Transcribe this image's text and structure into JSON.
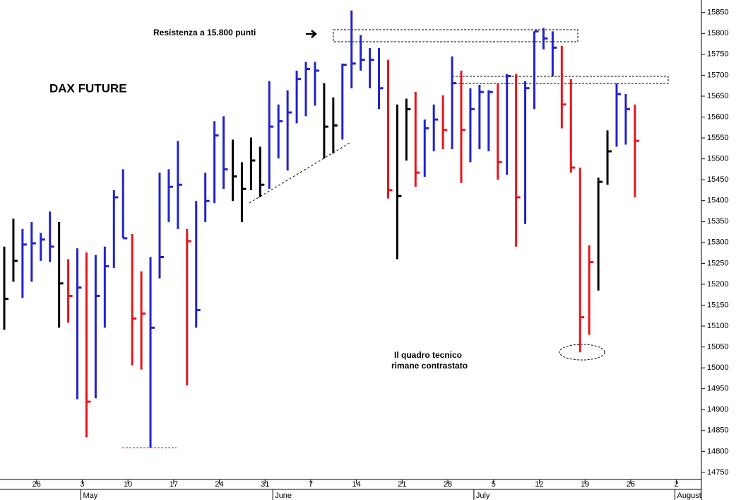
{
  "chart_data": {
    "type": "ohlc",
    "title": "DAX FUTURE",
    "annotations": [
      "Resistenza a 15.800 punti"
    ],
    "note": [
      "Il quadro tecnico",
      "rimane contrastato"
    ],
    "categories": [
      null,
      null,
      null,
      null,
      "26",
      null,
      null,
      null,
      null,
      "3",
      null,
      null,
      null,
      null,
      "10",
      null,
      null,
      null,
      null,
      "17",
      null,
      null,
      null,
      null,
      "24",
      null,
      null,
      null,
      null,
      "31",
      null,
      null,
      null,
      null,
      "7",
      null,
      null,
      null,
      null,
      "14",
      null,
      null,
      null,
      null,
      "21",
      null,
      null,
      null,
      null,
      "28",
      null,
      null,
      null,
      null,
      "5",
      null,
      null,
      null,
      null,
      "12",
      null,
      null,
      null,
      null,
      "19",
      null,
      null,
      null,
      null,
      "26",
      null,
      null,
      null,
      null,
      "2"
    ],
    "months": [
      {
        "index": 9,
        "label": "May"
      },
      {
        "index": 30,
        "label": "June"
      },
      {
        "index": 52,
        "label": "July"
      },
      {
        "index": 74,
        "label": "August"
      }
    ],
    "high": [
      15290,
      15357,
      15332,
      15349,
      15323,
      15374,
      15349,
      15260,
      15286,
      15276,
      15270,
      15290,
      15425,
      15475,
      15320,
      15231,
      15265,
      15467,
      15475,
      15543,
      15332,
      15399,
      15467,
      15590,
      15602,
      15546,
      15492,
      15551,
      15529,
      15686,
      15630,
      15664,
      15711,
      15732,
      15732,
      15681,
      15647,
      15728,
      15855,
      15796,
      15765,
      15765,
      15737,
      15630,
      15644,
      15660,
      15594,
      15630,
      15652,
      15745,
      15711,
      15669,
      15677,
      15664,
      15681,
      15703,
      15703,
      15686,
      15805,
      15813,
      15805,
      15770,
      15691,
      15479,
      15293,
      15455,
      15568,
      15681,
      15655,
      15630,
      null,
      null,
      null,
      null,
      null
    ],
    "low": [
      15091,
      15206,
      15167,
      15206,
      15256,
      15253,
      15096,
      15108,
      14925,
      14834,
      14927,
      15096,
      15239,
      15310,
      15006,
      14996,
      14809,
      15214,
      15349,
      15332,
      14958,
      15096,
      15349,
      15394,
      15428,
      15399,
      15349,
      15425,
      15408,
      15428,
      15501,
      15472,
      15585,
      15602,
      15627,
      15501,
      15513,
      15546,
      15669,
      15711,
      15669,
      15619,
      15405,
      15260,
      15496,
      15433,
      15457,
      15518,
      15523,
      15523,
      15442,
      15492,
      15523,
      15518,
      15450,
      15462,
      15290,
      15344,
      15619,
      15762,
      15698,
      15573,
      15467,
      15037,
      15079,
      15185,
      15438,
      15529,
      15534,
      15408,
      null,
      null,
      null,
      null,
      null
    ],
    "close": [
      15165,
      15256,
      15295,
      15298,
      15307,
      15290,
      15202,
      15172,
      15192,
      14919,
      15172,
      15243,
      15408,
      15310,
      15118,
      15130,
      15096,
      15265,
      15433,
      15438,
      15303,
      15138,
      15399,
      15556,
      15475,
      15458,
      15428,
      15496,
      15438,
      15577,
      15590,
      15611,
      15691,
      15715,
      15711,
      15577,
      15580,
      15725,
      15728,
      15737,
      15737,
      15669,
      15425,
      15411,
      15619,
      15467,
      15573,
      15594,
      15569,
      15681,
      15569,
      15619,
      15660,
      15660,
      15492,
      15698,
      15408,
      15669,
      15805,
      15788,
      15766,
      15630,
      15479,
      15121,
      15253,
      15445,
      15518,
      15655,
      15619,
      15543,
      null,
      null,
      null,
      null,
      null
    ],
    "colors": [
      "#000000",
      "#000000",
      "#2222cc",
      "#2222cc",
      "#2222cc",
      "#2222cc",
      "#000000",
      "#e8141c",
      "#2222cc",
      "#e8141c",
      "#2222cc",
      "#2222cc",
      "#2222cc",
      "#2222cc",
      "#e8141c",
      "#e8141c",
      "#2222cc",
      "#2222cc",
      "#2222cc",
      "#2222cc",
      "#e8141c",
      "#2222cc",
      "#2222cc",
      "#2222cc",
      "#2222cc",
      "#000000",
      "#000000",
      "#000000",
      "#000000",
      "#2222cc",
      "#2222cc",
      "#2222cc",
      "#2222cc",
      "#2222cc",
      "#2222cc",
      "#000000",
      "#000000",
      "#2222cc",
      "#2222cc",
      "#2222cc",
      "#2222cc",
      "#2222cc",
      "#e8141c",
      "#000000",
      "#000000",
      "#e8141c",
      "#2222cc",
      "#2222cc",
      "#e8141c",
      "#2222cc",
      "#e8141c",
      "#2222cc",
      "#2222cc",
      "#2222cc",
      "#e8141c",
      "#2222cc",
      "#e8141c",
      "#2222cc",
      "#2222cc",
      "#2222cc",
      "#2222cc",
      "#e8141c",
      "#e8141c",
      "#e8141c",
      "#e8141c",
      "#000000",
      "#000000",
      "#2222cc",
      "#2222cc",
      "#e8141c",
      null,
      null,
      null,
      null,
      null
    ],
    "ylim": [
      14716,
      15880
    ],
    "yticks": [
      14750,
      14800,
      14850,
      14900,
      14950,
      15000,
      15050,
      15100,
      15150,
      15200,
      15250,
      15300,
      15350,
      15400,
      15450,
      15500,
      15550,
      15600,
      15650,
      15700,
      15750,
      15800,
      15850
    ],
    "grid": false
  }
}
